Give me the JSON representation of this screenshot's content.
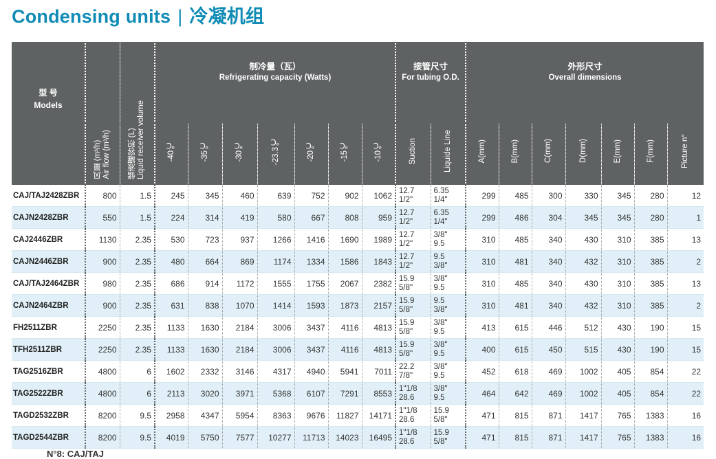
{
  "title": {
    "en": "Condensing units",
    "separator": "|",
    "zh": "冷凝机组"
  },
  "header": {
    "models": {
      "zh": "型  号",
      "en": "Models"
    },
    "air_flow": "风量 (m³/h)\nAir flow (m³/h)",
    "receiver": "储液罐容积 (L)\nLiquid receiver volume",
    "refrig": {
      "zh": "制冷量（瓦）",
      "en": "Refrigerating capacity (Watts)"
    },
    "tubing": {
      "zh": "接管尺寸",
      "en": "For tubing O.D."
    },
    "overall": {
      "zh": "外形尺寸",
      "en": "Overall dimensions"
    },
    "temps": [
      "-40℃",
      "-35℃",
      "-30℃",
      "-23.3℃",
      "-20℃",
      "-15℃",
      "-10℃"
    ],
    "tubes": [
      "Suction",
      "Liquide Line"
    ],
    "dims": [
      "A(mm)",
      "B(mm)",
      "C(mm)",
      "D(mm)",
      "E(mm)",
      "F(mm)",
      "Picture n°"
    ]
  },
  "rows": [
    {
      "model": "CAJ/TAJ2428ZBR",
      "air": "800",
      "rec": "1.5",
      "cap": [
        "245",
        "345",
        "460",
        "639",
        "752",
        "902",
        "1062"
      ],
      "suc": [
        "12.7",
        "1/2\""
      ],
      "liq": [
        "6.35",
        "1/4\""
      ],
      "dims": [
        "299",
        "485",
        "300",
        "330",
        "345",
        "280",
        "12"
      ]
    },
    {
      "model": "CAJN2428ZBR",
      "air": "550",
      "rec": "1.5",
      "cap": [
        "224",
        "314",
        "419",
        "580",
        "667",
        "808",
        "959"
      ],
      "suc": [
        "12.7",
        "1/2\""
      ],
      "liq": [
        "6.35",
        "1/4\""
      ],
      "dims": [
        "299",
        "486",
        "304",
        "345",
        "345",
        "280",
        "1"
      ]
    },
    {
      "model": "CAJ2446ZBR",
      "air": "1130",
      "rec": "2.35",
      "cap": [
        "530",
        "723",
        "937",
        "1266",
        "1416",
        "1690",
        "1989"
      ],
      "suc": [
        "12.7",
        "1/2\""
      ],
      "liq": [
        "3/8\"",
        "9.5"
      ],
      "dims": [
        "310",
        "485",
        "340",
        "430",
        "310",
        "385",
        "13"
      ]
    },
    {
      "model": "CAJN2446ZBR",
      "air": "900",
      "rec": "2.35",
      "cap": [
        "480",
        "664",
        "869",
        "1174",
        "1334",
        "1586",
        "1843"
      ],
      "suc": [
        "12.7",
        "1/2\""
      ],
      "liq": [
        "9.5",
        "3/8\""
      ],
      "dims": [
        "310",
        "481",
        "340",
        "432",
        "310",
        "385",
        "2"
      ]
    },
    {
      "model": "CAJ/TAJ2464ZBR",
      "air": "980",
      "rec": "2.35",
      "cap": [
        "686",
        "914",
        "1172",
        "1555",
        "1755",
        "2067",
        "2382"
      ],
      "suc": [
        "15.9",
        "5/8\""
      ],
      "liq": [
        "3/8\"",
        "9.5"
      ],
      "dims": [
        "310",
        "485",
        "340",
        "430",
        "310",
        "385",
        "13"
      ]
    },
    {
      "model": "CAJN2464ZBR",
      "air": "900",
      "rec": "2.35",
      "cap": [
        "631",
        "838",
        "1070",
        "1414",
        "1593",
        "1873",
        "2157"
      ],
      "suc": [
        "15.9",
        "5/8\""
      ],
      "liq": [
        "9.5",
        "3/8\""
      ],
      "dims": [
        "310",
        "481",
        "340",
        "432",
        "310",
        "385",
        "2"
      ]
    },
    {
      "model": "FH2511ZBR",
      "air": "2250",
      "rec": "2.35",
      "cap": [
        "1133",
        "1630",
        "2184",
        "3006",
        "3437",
        "4116",
        "4813"
      ],
      "suc": [
        "15.9",
        "5/8\""
      ],
      "liq": [
        "3/8\"",
        "9.5"
      ],
      "dims": [
        "413",
        "615",
        "446",
        "512",
        "430",
        "190",
        "15"
      ]
    },
    {
      "model": "TFH2511ZBR",
      "air": "2250",
      "rec": "2.35",
      "cap": [
        "1133",
        "1630",
        "2184",
        "3006",
        "3437",
        "4116",
        "4813"
      ],
      "suc": [
        "15.9",
        "5/8\""
      ],
      "liq": [
        "3/8\"",
        "9.5"
      ],
      "dims": [
        "400",
        "615",
        "450",
        "515",
        "430",
        "190",
        "15"
      ]
    },
    {
      "model": "TAG2516ZBR",
      "air": "4800",
      "rec": "6",
      "cap": [
        "1602",
        "2332",
        "3146",
        "4317",
        "4940",
        "5941",
        "7011"
      ],
      "suc": [
        "22.2",
        "7/8\""
      ],
      "liq": [
        "3/8\"",
        "9.5"
      ],
      "dims": [
        "452",
        "618",
        "469",
        "1002",
        "405",
        "854",
        "22"
      ]
    },
    {
      "model": "TAG2522ZBR",
      "air": "4800",
      "rec": "6",
      "cap": [
        "2113",
        "3020",
        "3971",
        "5368",
        "6107",
        "7291",
        "8553"
      ],
      "suc": [
        "1\"1/8",
        "28.6"
      ],
      "liq": [
        "3/8\"",
        "9.5"
      ],
      "dims": [
        "464",
        "642",
        "469",
        "1002",
        "405",
        "854",
        "22"
      ]
    },
    {
      "model": "TAGD2532ZBR",
      "air": "8200",
      "rec": "9.5",
      "cap": [
        "2958",
        "4347",
        "5954",
        "8363",
        "9676",
        "11827",
        "14171"
      ],
      "suc": [
        "1\"1/8",
        "28.6"
      ],
      "liq": [
        "15.9",
        "5/8\""
      ],
      "dims": [
        "471",
        "815",
        "871",
        "1417",
        "765",
        "1383",
        "16"
      ]
    },
    {
      "model": "TAGD2544ZBR",
      "air": "8200",
      "rec": "9.5",
      "cap": [
        "4019",
        "5750",
        "7577",
        "10277",
        "11713",
        "14023",
        "16495"
      ],
      "suc": [
        "1\"1/8",
        "28.6"
      ],
      "liq": [
        "15.9",
        "5/8\""
      ],
      "dims": [
        "471",
        "815",
        "871",
        "1417",
        "765",
        "1383",
        "16"
      ]
    }
  ],
  "footer": "N°8: CAJ/TAJ"
}
